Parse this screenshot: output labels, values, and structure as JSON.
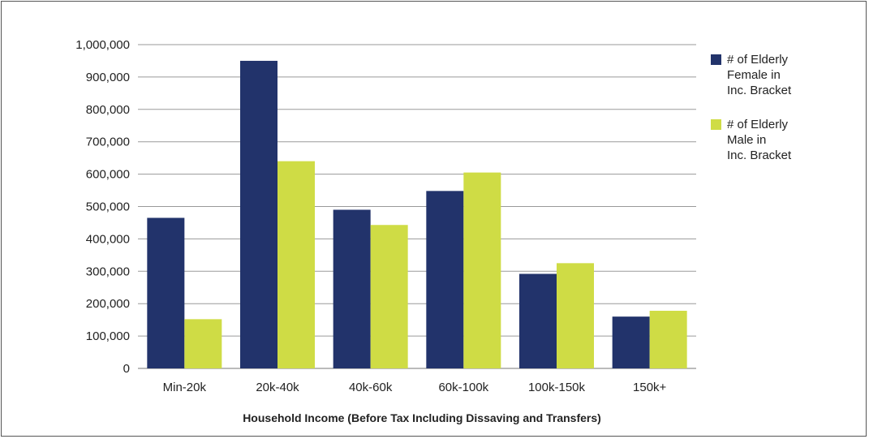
{
  "chart_data": {
    "type": "bar",
    "categories": [
      "Min-20k",
      "20k-40k",
      "40k-60k",
      "60k-100k",
      "100k-150k",
      "150k+"
    ],
    "series": [
      {
        "name": "# of Elderly Female in Inc. Bracket",
        "name_lines": [
          "# of Elderly",
          "Female in",
          "Inc. Bracket"
        ],
        "color": "#22336b",
        "values": [
          465000,
          950000,
          490000,
          548000,
          292000,
          160000
        ]
      },
      {
        "name": "# of Elderly Male in Inc. Bracket",
        "name_lines": [
          "# of Elderly",
          "Male in",
          "Inc. Bracket"
        ],
        "color": "#cfdc45",
        "values": [
          152000,
          640000,
          443000,
          605000,
          325000,
          178000
        ]
      }
    ],
    "title": "",
    "xlabel": "Household Income (Before Tax Including Dissaving and Transfers)",
    "ylabel": "",
    "ylim": [
      0,
      1000000
    ],
    "yticks": [
      0,
      100000,
      200000,
      300000,
      400000,
      500000,
      600000,
      700000,
      800000,
      900000,
      1000000
    ],
    "ytick_labels": [
      "0",
      "100,000",
      "200,000",
      "300,000",
      "400,000",
      "500,000",
      "600,000",
      "700,000",
      "800,000",
      "900,000",
      "1,000,000"
    ],
    "grid": true,
    "legend_position": "right",
    "gridline_color": "#9a9a9a"
  }
}
